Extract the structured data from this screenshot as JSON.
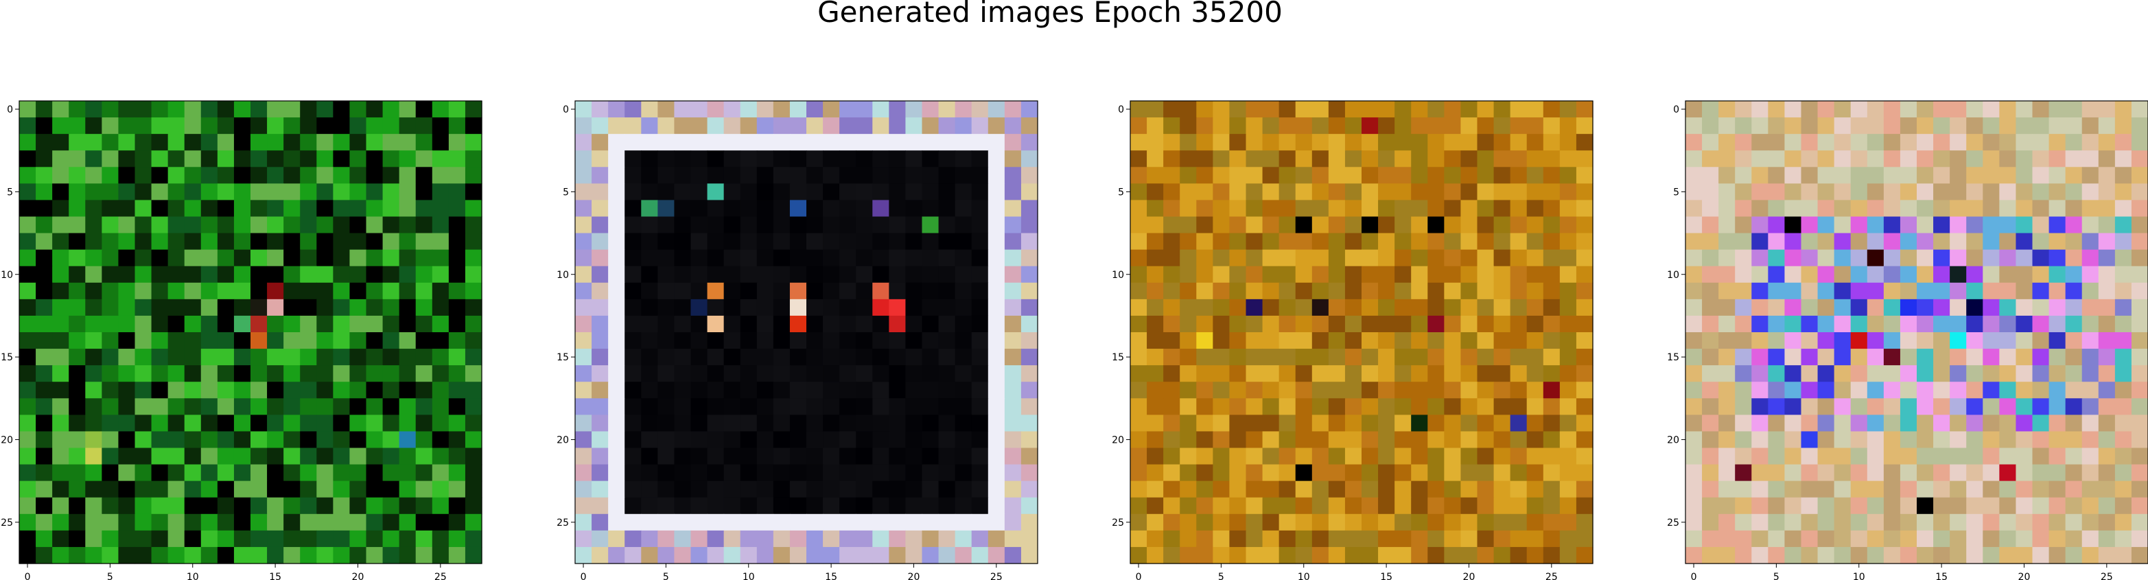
{
  "figure": {
    "title": "Generated images Epoch 35200"
  },
  "chart_data": [
    {
      "type": "heatmap",
      "grid_size": [
        28,
        28
      ],
      "palette": [
        "#0a2a08",
        "#0f4a0e",
        "#137a12",
        "#19a018",
        "#38c02a",
        "#66b24a",
        "#0f5a20",
        "#000000"
      ],
      "highlights": [
        {
          "row": 11,
          "col": 14,
          "color": "#000000"
        },
        {
          "row": 11,
          "col": 15,
          "color": "#8a0d10"
        },
        {
          "row": 12,
          "col": 15,
          "color": "#e0a8a8"
        },
        {
          "row": 12,
          "col": 14,
          "color": "#1a1a10"
        },
        {
          "row": 13,
          "col": 14,
          "color": "#b02a20"
        },
        {
          "row": 14,
          "col": 14,
          "color": "#d0601a"
        },
        {
          "row": 13,
          "col": 13,
          "color": "#40b060"
        },
        {
          "row": 20,
          "col": 23,
          "color": "#2080b0"
        },
        {
          "row": 21,
          "col": 4,
          "color": "#c8d050"
        },
        {
          "row": 20,
          "col": 4,
          "color": "#90c040"
        },
        {
          "row": 14,
          "col": 24,
          "color": "#000000"
        },
        {
          "row": 25,
          "col": 13,
          "color": "#000000"
        }
      ],
      "x_ticks": [
        0,
        5,
        10,
        15,
        20,
        25
      ],
      "y_ticks": [
        0,
        5,
        10,
        15,
        20,
        25
      ],
      "xlim": [
        -0.5,
        27.5
      ],
      "ylim": [
        27.5,
        -0.5
      ]
    },
    {
      "type": "heatmap",
      "grid_size": [
        28,
        28
      ],
      "border_palette": [
        "#c8b8e0",
        "#a898d8",
        "#d8c0b0",
        "#b0c8d8",
        "#e0d0a0",
        "#9898e0",
        "#d8a8b8",
        "#b8e0e0",
        "#c0a070",
        "#8878c8"
      ],
      "frame_color": "#eeeef8",
      "inner_color": "#000000",
      "inner_rows": [
        3,
        24
      ],
      "inner_cols": [
        3,
        24
      ],
      "highlights": [
        {
          "row": 5,
          "col": 8,
          "color": "#40c0a0"
        },
        {
          "row": 6,
          "col": 4,
          "color": "#30a060"
        },
        {
          "row": 6,
          "col": 5,
          "color": "#1a4060"
        },
        {
          "row": 6,
          "col": 13,
          "color": "#2050a0"
        },
        {
          "row": 6,
          "col": 18,
          "color": "#6040a0"
        },
        {
          "row": 7,
          "col": 21,
          "color": "#30a030"
        },
        {
          "row": 11,
          "col": 8,
          "color": "#e08030"
        },
        {
          "row": 11,
          "col": 13,
          "color": "#e07040"
        },
        {
          "row": 11,
          "col": 18,
          "color": "#e06040"
        },
        {
          "row": 12,
          "col": 13,
          "color": "#f0e0d0"
        },
        {
          "row": 12,
          "col": 18,
          "color": "#e02020"
        },
        {
          "row": 12,
          "col": 19,
          "color": "#f03030"
        },
        {
          "row": 13,
          "col": 8,
          "color": "#f0c090"
        },
        {
          "row": 13,
          "col": 13,
          "color": "#e03010"
        },
        {
          "row": 13,
          "col": 19,
          "color": "#d02020"
        },
        {
          "row": 12,
          "col": 7,
          "color": "#102050"
        }
      ],
      "x_ticks": [
        0,
        5,
        10,
        15,
        20,
        25
      ],
      "y_ticks": [
        0,
        5,
        10,
        15,
        20,
        25
      ],
      "xlim": [
        -0.5,
        27.5
      ],
      "ylim": [
        27.5,
        -0.5
      ]
    },
    {
      "type": "heatmap",
      "grid_size": [
        28,
        28
      ],
      "palette": [
        "#c88a10",
        "#b06a08",
        "#d8a020",
        "#9a7a10",
        "#8a5008",
        "#e0b030",
        "#a08020",
        "#c07818"
      ],
      "highlights": [
        {
          "row": 7,
          "col": 10,
          "color": "#000000"
        },
        {
          "row": 7,
          "col": 14,
          "color": "#000000"
        },
        {
          "row": 7,
          "col": 18,
          "color": "#000000"
        },
        {
          "row": 12,
          "col": 7,
          "color": "#201060"
        },
        {
          "row": 12,
          "col": 11,
          "color": "#201010"
        },
        {
          "row": 14,
          "col": 4,
          "color": "#f0d020"
        },
        {
          "row": 19,
          "col": 17,
          "color": "#0a2a0a"
        },
        {
          "row": 19,
          "col": 23,
          "color": "#3030a0"
        },
        {
          "row": 22,
          "col": 10,
          "color": "#000000"
        },
        {
          "row": 17,
          "col": 25,
          "color": "#8a0a10"
        },
        {
          "row": 13,
          "col": 18,
          "color": "#8a0a20"
        },
        {
          "row": 1,
          "col": 14,
          "color": "#a01010"
        }
      ],
      "x_ticks": [
        0,
        5,
        10,
        15,
        20,
        25
      ],
      "y_ticks": [
        0,
        5,
        10,
        15,
        20,
        25
      ],
      "xlim": [
        -0.5,
        27.5
      ],
      "ylim": [
        27.5,
        -0.5
      ]
    },
    {
      "type": "heatmap",
      "grid_size": [
        28,
        28
      ],
      "palette": [
        "#e0c0a0",
        "#c8b078",
        "#e8a890",
        "#d0d0b0",
        "#b8c098",
        "#e8d0c8",
        "#c0a070",
        "#e0b870"
      ],
      "center_palette": [
        "#a040f0",
        "#4040f0",
        "#e060e0",
        "#8080d0",
        "#60b0e0",
        "#c080e0",
        "#3030c0",
        "#f0a0f0",
        "#40c0c0",
        "#b0b0e0"
      ],
      "center_rows": [
        7,
        19
      ],
      "center_cols": [
        3,
        26
      ],
      "highlights": [
        {
          "row": 7,
          "col": 6,
          "color": "#000000"
        },
        {
          "row": 9,
          "col": 11,
          "color": "#300000"
        },
        {
          "row": 10,
          "col": 16,
          "color": "#102020"
        },
        {
          "row": 12,
          "col": 13,
          "color": "#2030f0"
        },
        {
          "row": 14,
          "col": 16,
          "color": "#10f0f0"
        },
        {
          "row": 12,
          "col": 17,
          "color": "#000040"
        },
        {
          "row": 14,
          "col": 10,
          "color": "#d01010"
        },
        {
          "row": 15,
          "col": 12,
          "color": "#6a0a20"
        },
        {
          "row": 22,
          "col": 3,
          "color": "#6a0a20"
        },
        {
          "row": 22,
          "col": 19,
          "color": "#c00a20"
        },
        {
          "row": 24,
          "col": 14,
          "color": "#000000"
        },
        {
          "row": 20,
          "col": 7,
          "color": "#3040f0"
        }
      ],
      "x_ticks": [
        0,
        5,
        10,
        15,
        20,
        25
      ],
      "y_ticks": [
        0,
        5,
        10,
        15,
        20,
        25
      ],
      "xlim": [
        -0.5,
        27.5
      ],
      "ylim": [
        27.5,
        -0.5
      ]
    }
  ]
}
